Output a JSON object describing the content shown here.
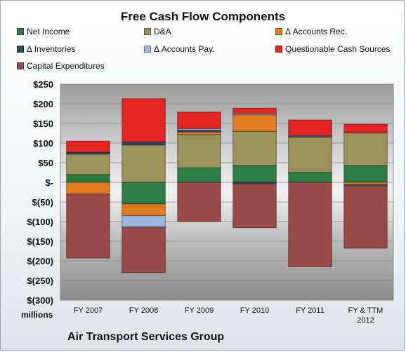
{
  "title": "Free Cash Flow Components",
  "unit_label": "millions",
  "company": "Air Transport Services Group",
  "chart_data": {
    "type": "bar",
    "stacked": true,
    "title": "Free Cash Flow Components",
    "ylabel": "millions",
    "xlabel": "",
    "ylim": [
      -300,
      250
    ],
    "y_tick_step": 50,
    "y_ticks": [
      "$250",
      "$200",
      "$150",
      "$100",
      "$50",
      "$-",
      "$(50)",
      "$(100)",
      "$(150)",
      "$(200)",
      "$(250)",
      "$(300)"
    ],
    "grid": true,
    "legend_position": "top",
    "categories": [
      "FY 2007",
      "FY 2008",
      "FY 2009",
      "FY 2010",
      "FY 2011",
      "FY & TTM 2012"
    ],
    "series": [
      {
        "name": "Net Income",
        "color": "#2e7d46",
        "values": [
          20,
          -55,
          37,
          43,
          25,
          43
        ]
      },
      {
        "name": "D&A",
        "color": "#9b9259",
        "values": [
          52,
          95,
          85,
          87,
          90,
          83
        ]
      },
      {
        "name": "Δ Accounts Rec.",
        "color": "#e07b22",
        "values": [
          -30,
          -30,
          6,
          42,
          0,
          -6
        ]
      },
      {
        "name": "Δ Inventories",
        "color": "#2d4a6b",
        "values": [
          4,
          8,
          5,
          -4,
          2,
          -2
        ]
      },
      {
        "name": "Δ Accounts Pay.",
        "color": "#9bb8dc",
        "values": [
          1,
          -29,
          4,
          3,
          2,
          -2
        ]
      },
      {
        "name": "Questionable Cash Sources",
        "color": "#e52424",
        "values": [
          28,
          110,
          42,
          14,
          40,
          22
        ]
      },
      {
        "name": "Capital Expenditures",
        "color": "#9b4a4a",
        "values": [
          -163,
          -116,
          -100,
          -112,
          -215,
          -158
        ]
      }
    ]
  }
}
